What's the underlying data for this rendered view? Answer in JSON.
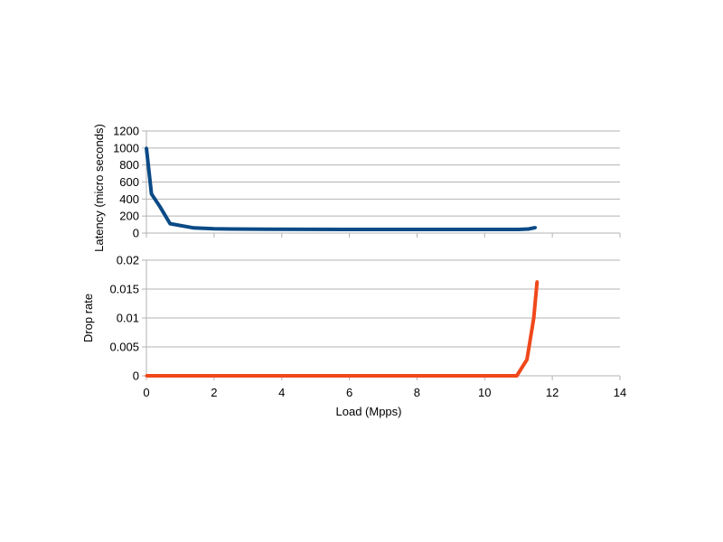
{
  "chart_data": [
    {
      "type": "line",
      "title": "",
      "xlabel": "",
      "ylabel": "Latency (micro seconds)",
      "xlim": [
        0,
        14
      ],
      "ylim": [
        0,
        1200
      ],
      "x_ticks": [
        0,
        2,
        4,
        6,
        8,
        10,
        12,
        14
      ],
      "y_ticks": [
        0,
        200,
        400,
        600,
        800,
        1000,
        1200
      ],
      "y_tick_labels": [
        "0",
        "200",
        "400",
        "600",
        "800",
        "1000",
        "1200"
      ],
      "grid": true,
      "legend": "none",
      "series": [
        {
          "color": "#0a4a86",
          "points": [
            [
              0.0,
              1000
            ],
            [
              0.15,
              460
            ],
            [
              0.4,
              310
            ],
            [
              0.7,
              110
            ],
            [
              1.4,
              60
            ],
            [
              2.0,
              50
            ],
            [
              3.5,
              45
            ],
            [
              6.0,
              42
            ],
            [
              9.0,
              42
            ],
            [
              11.0,
              42
            ],
            [
              11.3,
              48
            ],
            [
              11.5,
              65
            ]
          ]
        }
      ]
    },
    {
      "type": "line",
      "title": "",
      "xlabel": "Load (Mpps)",
      "ylabel": "Drop rate",
      "xlim": [
        0,
        14
      ],
      "ylim": [
        0,
        0.02
      ],
      "x_ticks": [
        0,
        2,
        4,
        6,
        8,
        10,
        12,
        14
      ],
      "x_tick_labels": [
        "0",
        "2",
        "4",
        "6",
        "8",
        "10",
        "12",
        "14"
      ],
      "y_ticks": [
        0,
        0.005,
        0.01,
        0.015,
        0.02
      ],
      "y_tick_labels": [
        "0",
        "0.005",
        "0.01",
        "0.015",
        "0.02"
      ],
      "grid": true,
      "legend": "none",
      "series": [
        {
          "color": "#f0481b",
          "points": [
            [
              0.0,
              0
            ],
            [
              4.0,
              0
            ],
            [
              8.0,
              0
            ],
            [
              10.5,
              0
            ],
            [
              10.95,
              0
            ],
            [
              11.25,
              0.0028
            ],
            [
              11.45,
              0.01
            ],
            [
              11.55,
              0.0163
            ]
          ]
        }
      ]
    }
  ]
}
